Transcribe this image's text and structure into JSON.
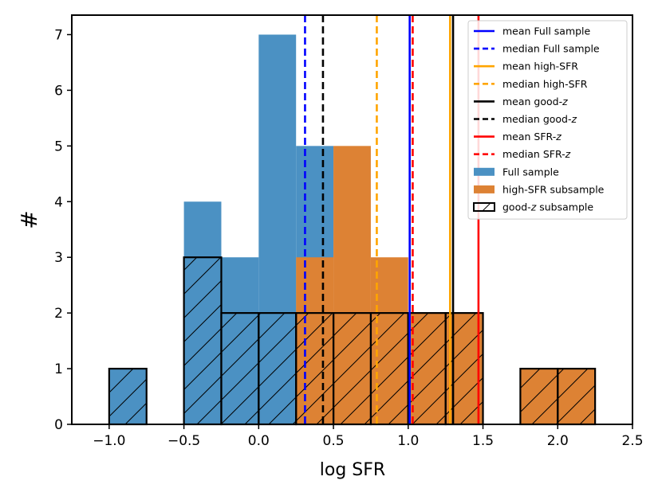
{
  "chart_data": {
    "type": "bar",
    "xlabel": "log SFR",
    "ylabel": "#",
    "xlim": [
      -1.25,
      2.5
    ],
    "ylim": [
      0,
      7.35
    ],
    "grid": false,
    "legend_position": "top-right",
    "x_ticks": [
      {
        "value": -1.0,
        "label": "−1.0"
      },
      {
        "value": -0.5,
        "label": "−0.5"
      },
      {
        "value": 0.0,
        "label": "0.0"
      },
      {
        "value": 0.5,
        "label": "0.5"
      },
      {
        "value": 1.0,
        "label": "1.0"
      },
      {
        "value": 1.5,
        "label": "1.5"
      },
      {
        "value": 2.0,
        "label": "2.0"
      },
      {
        "value": 2.5,
        "label": "2.5"
      }
    ],
    "y_ticks": [
      {
        "value": 0,
        "label": "0"
      },
      {
        "value": 1,
        "label": "1"
      },
      {
        "value": 2,
        "label": "2"
      },
      {
        "value": 3,
        "label": "3"
      },
      {
        "value": 4,
        "label": "4"
      },
      {
        "value": 5,
        "label": "5"
      },
      {
        "value": 6,
        "label": "6"
      },
      {
        "value": 7,
        "label": "7"
      }
    ],
    "histograms": [
      {
        "name": "Full sample",
        "color": "#4b91c3",
        "bins": [
          {
            "x0": -1.0,
            "x1": -0.75,
            "count": 1
          },
          {
            "x0": -0.5,
            "x1": -0.25,
            "count": 4
          },
          {
            "x0": -0.25,
            "x1": 0.0,
            "count": 3
          },
          {
            "x0": 0.0,
            "x1": 0.25,
            "count": 7
          },
          {
            "x0": 0.25,
            "x1": 0.5,
            "count": 5
          }
        ]
      },
      {
        "name": "high-SFR subsample",
        "color": "#dd8234",
        "bins": [
          {
            "x0": 0.25,
            "x1": 0.5,
            "count": 3
          },
          {
            "x0": 0.5,
            "x1": 0.75,
            "count": 5
          },
          {
            "x0": 0.75,
            "x1": 1.0,
            "count": 3
          },
          {
            "x0": 1.0,
            "x1": 1.25,
            "count": 2
          },
          {
            "x0": 1.25,
            "x1": 1.5,
            "count": 2
          },
          {
            "x0": 1.75,
            "x1": 2.0,
            "count": 1
          },
          {
            "x0": 2.0,
            "x1": 2.25,
            "count": 1
          }
        ]
      },
      {
        "name": "good-z subsample",
        "style": "hatched outline",
        "bins": [
          {
            "x0": -1.0,
            "x1": -0.75,
            "count": 1
          },
          {
            "x0": -0.5,
            "x1": -0.25,
            "count": 3
          },
          {
            "x0": -0.25,
            "x1": 0.0,
            "count": 2
          },
          {
            "x0": 0.0,
            "x1": 0.25,
            "count": 2
          },
          {
            "x0": 0.25,
            "x1": 0.5,
            "count": 2
          },
          {
            "x0": 0.5,
            "x1": 0.75,
            "count": 2
          },
          {
            "x0": 0.75,
            "x1": 1.0,
            "count": 2
          },
          {
            "x0": 1.0,
            "x1": 1.25,
            "count": 2
          },
          {
            "x0": 1.25,
            "x1": 1.5,
            "count": 2
          },
          {
            "x0": 1.75,
            "x1": 2.0,
            "count": 1
          },
          {
            "x0": 2.0,
            "x1": 2.25,
            "count": 1
          }
        ]
      }
    ],
    "vertical_lines": [
      {
        "name": "median Full sample",
        "x": 0.31,
        "color": "#0000ff",
        "dashed": true
      },
      {
        "name": "median good-z",
        "x": 0.43,
        "color": "#000000",
        "dashed": true
      },
      {
        "name": "median high-SFR",
        "x": 0.79,
        "color": "#ffa500",
        "dashed": true
      },
      {
        "name": "mean Full sample",
        "x": 1.01,
        "color": "#0000ff",
        "dashed": false
      },
      {
        "name": "median SFR-z",
        "x": 1.03,
        "color": "#ff0000",
        "dashed": true
      },
      {
        "name": "mean high-SFR",
        "x": 1.28,
        "color": "#ffa500",
        "dashed": false
      },
      {
        "name": "mean good-z",
        "x": 1.3,
        "color": "#000000",
        "dashed": false
      },
      {
        "name": "mean SFR-z",
        "x": 1.47,
        "color": "#ff0000",
        "dashed": false
      }
    ],
    "legend": [
      {
        "kind": "line",
        "color": "#0000ff",
        "dashed": false,
        "text": "mean Full sample",
        "italic": ""
      },
      {
        "kind": "line",
        "color": "#0000ff",
        "dashed": true,
        "text": "median Full sample",
        "italic": ""
      },
      {
        "kind": "line",
        "color": "#ffa500",
        "dashed": false,
        "text": "mean high-SFR",
        "italic": ""
      },
      {
        "kind": "line",
        "color": "#ffa500",
        "dashed": true,
        "text": "median high-SFR",
        "italic": ""
      },
      {
        "kind": "line",
        "color": "#000000",
        "dashed": false,
        "text": "mean good-",
        "italic": "z"
      },
      {
        "kind": "line",
        "color": "#000000",
        "dashed": true,
        "text": "median good-",
        "italic": "z"
      },
      {
        "kind": "line",
        "color": "#ff0000",
        "dashed": false,
        "text": "mean SFR-",
        "italic": "z"
      },
      {
        "kind": "line",
        "color": "#ff0000",
        "dashed": true,
        "text": "median SFR-",
        "italic": "z"
      },
      {
        "kind": "patch",
        "color": "#4b91c3",
        "text": "Full sample",
        "italic": ""
      },
      {
        "kind": "patch",
        "color": "#dd8234",
        "text": "high-SFR subsample",
        "italic": ""
      },
      {
        "kind": "hatch",
        "color": "none",
        "text": "good-",
        "italic": "z",
        "suffix": " subsample"
      }
    ]
  }
}
